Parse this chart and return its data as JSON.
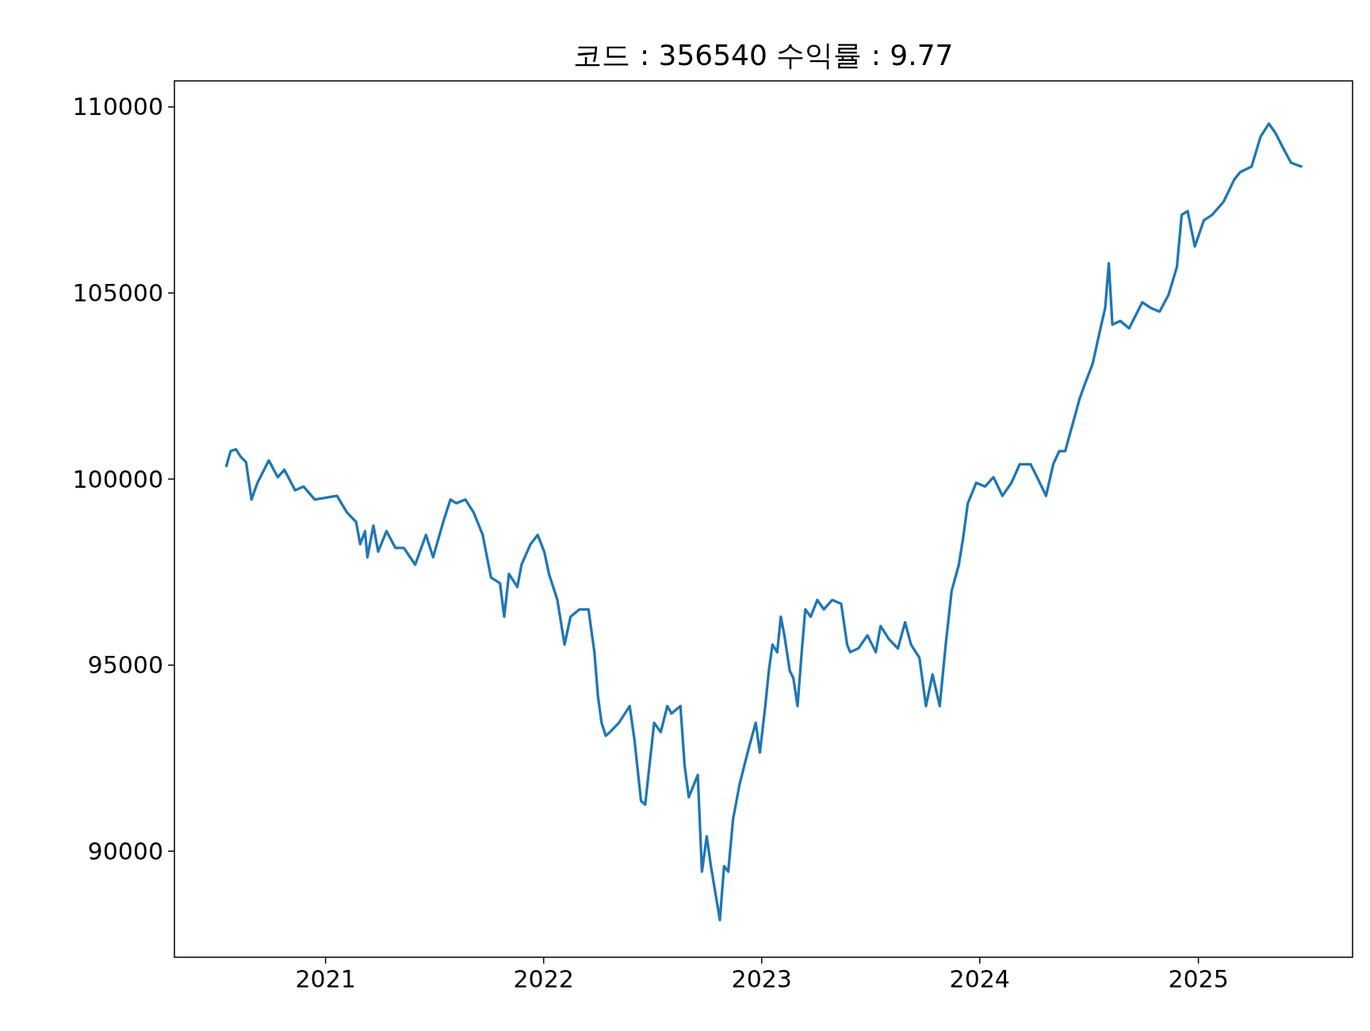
{
  "chart_data": {
    "type": "line",
    "title": "코드 : 356540 수익률 : 9.77",
    "x": [
      "2020-07-19",
      "2020-07-26",
      "2020-08-04",
      "2020-08-12",
      "2020-08-21",
      "2020-08-30",
      "2020-09-09",
      "2020-09-28",
      "2020-10-13",
      "2020-10-24",
      "2020-11-11",
      "2020-11-25",
      "2020-12-14",
      "2021-01-01",
      "2021-01-20",
      "2021-02-06",
      "2021-02-21",
      "2021-02-28",
      "2021-03-08",
      "2021-03-12",
      "2021-03-22",
      "2021-03-30",
      "2021-04-13",
      "2021-04-28",
      "2021-05-12",
      "2021-05-31",
      "2021-06-18",
      "2021-06-30",
      "2021-07-17",
      "2021-07-29",
      "2021-08-08",
      "2021-08-23",
      "2021-09-06",
      "2021-09-21",
      "2021-10-05",
      "2021-10-20",
      "2021-10-27",
      "2021-11-04",
      "2021-11-18",
      "2021-11-25",
      "2021-12-10",
      "2021-12-22",
      "2022-01-02",
      "2022-01-10",
      "2022-01-24",
      "2022-02-05",
      "2022-02-15",
      "2022-03-02",
      "2022-03-17",
      "2022-03-27",
      "2022-04-02",
      "2022-04-08",
      "2022-04-15",
      "2022-04-22",
      "2022-05-07",
      "2022-05-25",
      "2022-06-02",
      "2022-06-13",
      "2022-06-20",
      "2022-07-05",
      "2022-07-16",
      "2022-07-27",
      "2022-08-03",
      "2022-08-18",
      "2022-08-25",
      "2022-09-01",
      "2022-09-16",
      "2022-09-23",
      "2022-10-01",
      "2022-10-08",
      "2022-10-23",
      "2022-10-30",
      "2022-11-06",
      "2022-11-14",
      "2022-11-25",
      "2022-12-10",
      "2022-12-22",
      "2022-12-29",
      "2023-01-07",
      "2023-01-13",
      "2023-01-19",
      "2023-01-27",
      "2023-02-02",
      "2023-02-08",
      "2023-02-17",
      "2023-02-23",
      "2023-03-02",
      "2023-03-09",
      "2023-03-15",
      "2023-03-24",
      "2023-04-04",
      "2023-04-15",
      "2023-04-29",
      "2023-05-14",
      "2023-05-24",
      "2023-05-29",
      "2023-06-12",
      "2023-06-27",
      "2023-07-11",
      "2023-07-19",
      "2023-08-02",
      "2023-08-17",
      "2023-08-29",
      "2023-09-08",
      "2023-09-22",
      "2023-10-03",
      "2023-10-14",
      "2023-10-26",
      "2023-11-05",
      "2023-11-15",
      "2023-11-27",
      "2023-12-04",
      "2023-12-12",
      "2023-12-26",
      "2024-01-10",
      "2024-01-24",
      "2024-02-08",
      "2024-02-23",
      "2024-03-08",
      "2024-03-26",
      "2024-04-06",
      "2024-04-21",
      "2024-05-03",
      "2024-05-13",
      "2024-05-23",
      "2024-06-04",
      "2024-06-16",
      "2024-06-26",
      "2024-07-08",
      "2024-07-21",
      "2024-07-29",
      "2024-08-04",
      "2024-08-10",
      "2024-08-23",
      "2024-09-07",
      "2024-09-29",
      "2024-10-13",
      "2024-10-28",
      "2024-11-12",
      "2024-11-26",
      "2024-12-04",
      "2024-12-14",
      "2024-12-26",
      "2025-01-10",
      "2025-01-24",
      "2025-02-12",
      "2025-03-02",
      "2025-03-12",
      "2025-03-31",
      "2025-04-15",
      "2025-04-29",
      "2025-05-10",
      "2025-05-21",
      "2025-06-05",
      "2025-06-22"
    ],
    "series": [
      {
        "color": "#1f77b4",
        "values": [
          100350,
          100750,
          100800,
          100600,
          100450,
          99450,
          99900,
          100500,
          100050,
          100250,
          99700,
          99800,
          99450,
          99500,
          99550,
          99100,
          98850,
          98250,
          98600,
          97900,
          98750,
          98050,
          98600,
          98150,
          98150,
          97700,
          98500,
          97900,
          98850,
          99450,
          99350,
          99450,
          99100,
          98500,
          97350,
          97200,
          96300,
          97450,
          97100,
          97700,
          98250,
          98500,
          98050,
          97450,
          96750,
          95550,
          96300,
          96500,
          96500,
          95350,
          94150,
          93450,
          93100,
          93200,
          93450,
          93900,
          93000,
          91350,
          91250,
          93450,
          93200,
          93900,
          93700,
          93900,
          92300,
          91450,
          92050,
          89450,
          90400,
          89600,
          88150,
          89600,
          89450,
          90850,
          91800,
          92750,
          93450,
          92650,
          93900,
          94850,
          95550,
          95350,
          96300,
          95800,
          94850,
          94650,
          93900,
          95350,
          96500,
          96300,
          96750,
          96500,
          96750,
          96650,
          95550,
          95350,
          95450,
          95800,
          95350,
          96050,
          95700,
          95450,
          96150,
          95550,
          95200,
          93900,
          94750,
          93900,
          95550,
          97000,
          97700,
          98400,
          99350,
          99900,
          99800,
          100050,
          99550,
          99900,
          100400,
          100400,
          100050,
          99550,
          100400,
          100750,
          100750,
          101450,
          102150,
          102600,
          103100,
          104050,
          104600,
          105800,
          104150,
          104250,
          104050,
          104750,
          104600,
          104500,
          104950,
          105700,
          107100,
          107200,
          106250,
          106950,
          107100,
          107450,
          108050,
          108250,
          108400,
          109200,
          109550,
          109300,
          108950,
          108500,
          108400
        ]
      }
    ],
    "xlim": [
      "2020-04-23",
      "2025-09-16"
    ],
    "xticks": [
      "2021",
      "2022",
      "2023",
      "2024",
      "2025"
    ],
    "ylim": [
      87150,
      110700
    ],
    "yticks": [
      90000,
      95000,
      100000,
      105000,
      110000
    ],
    "grid": false,
    "line_style": "solid",
    "marker": "none"
  }
}
